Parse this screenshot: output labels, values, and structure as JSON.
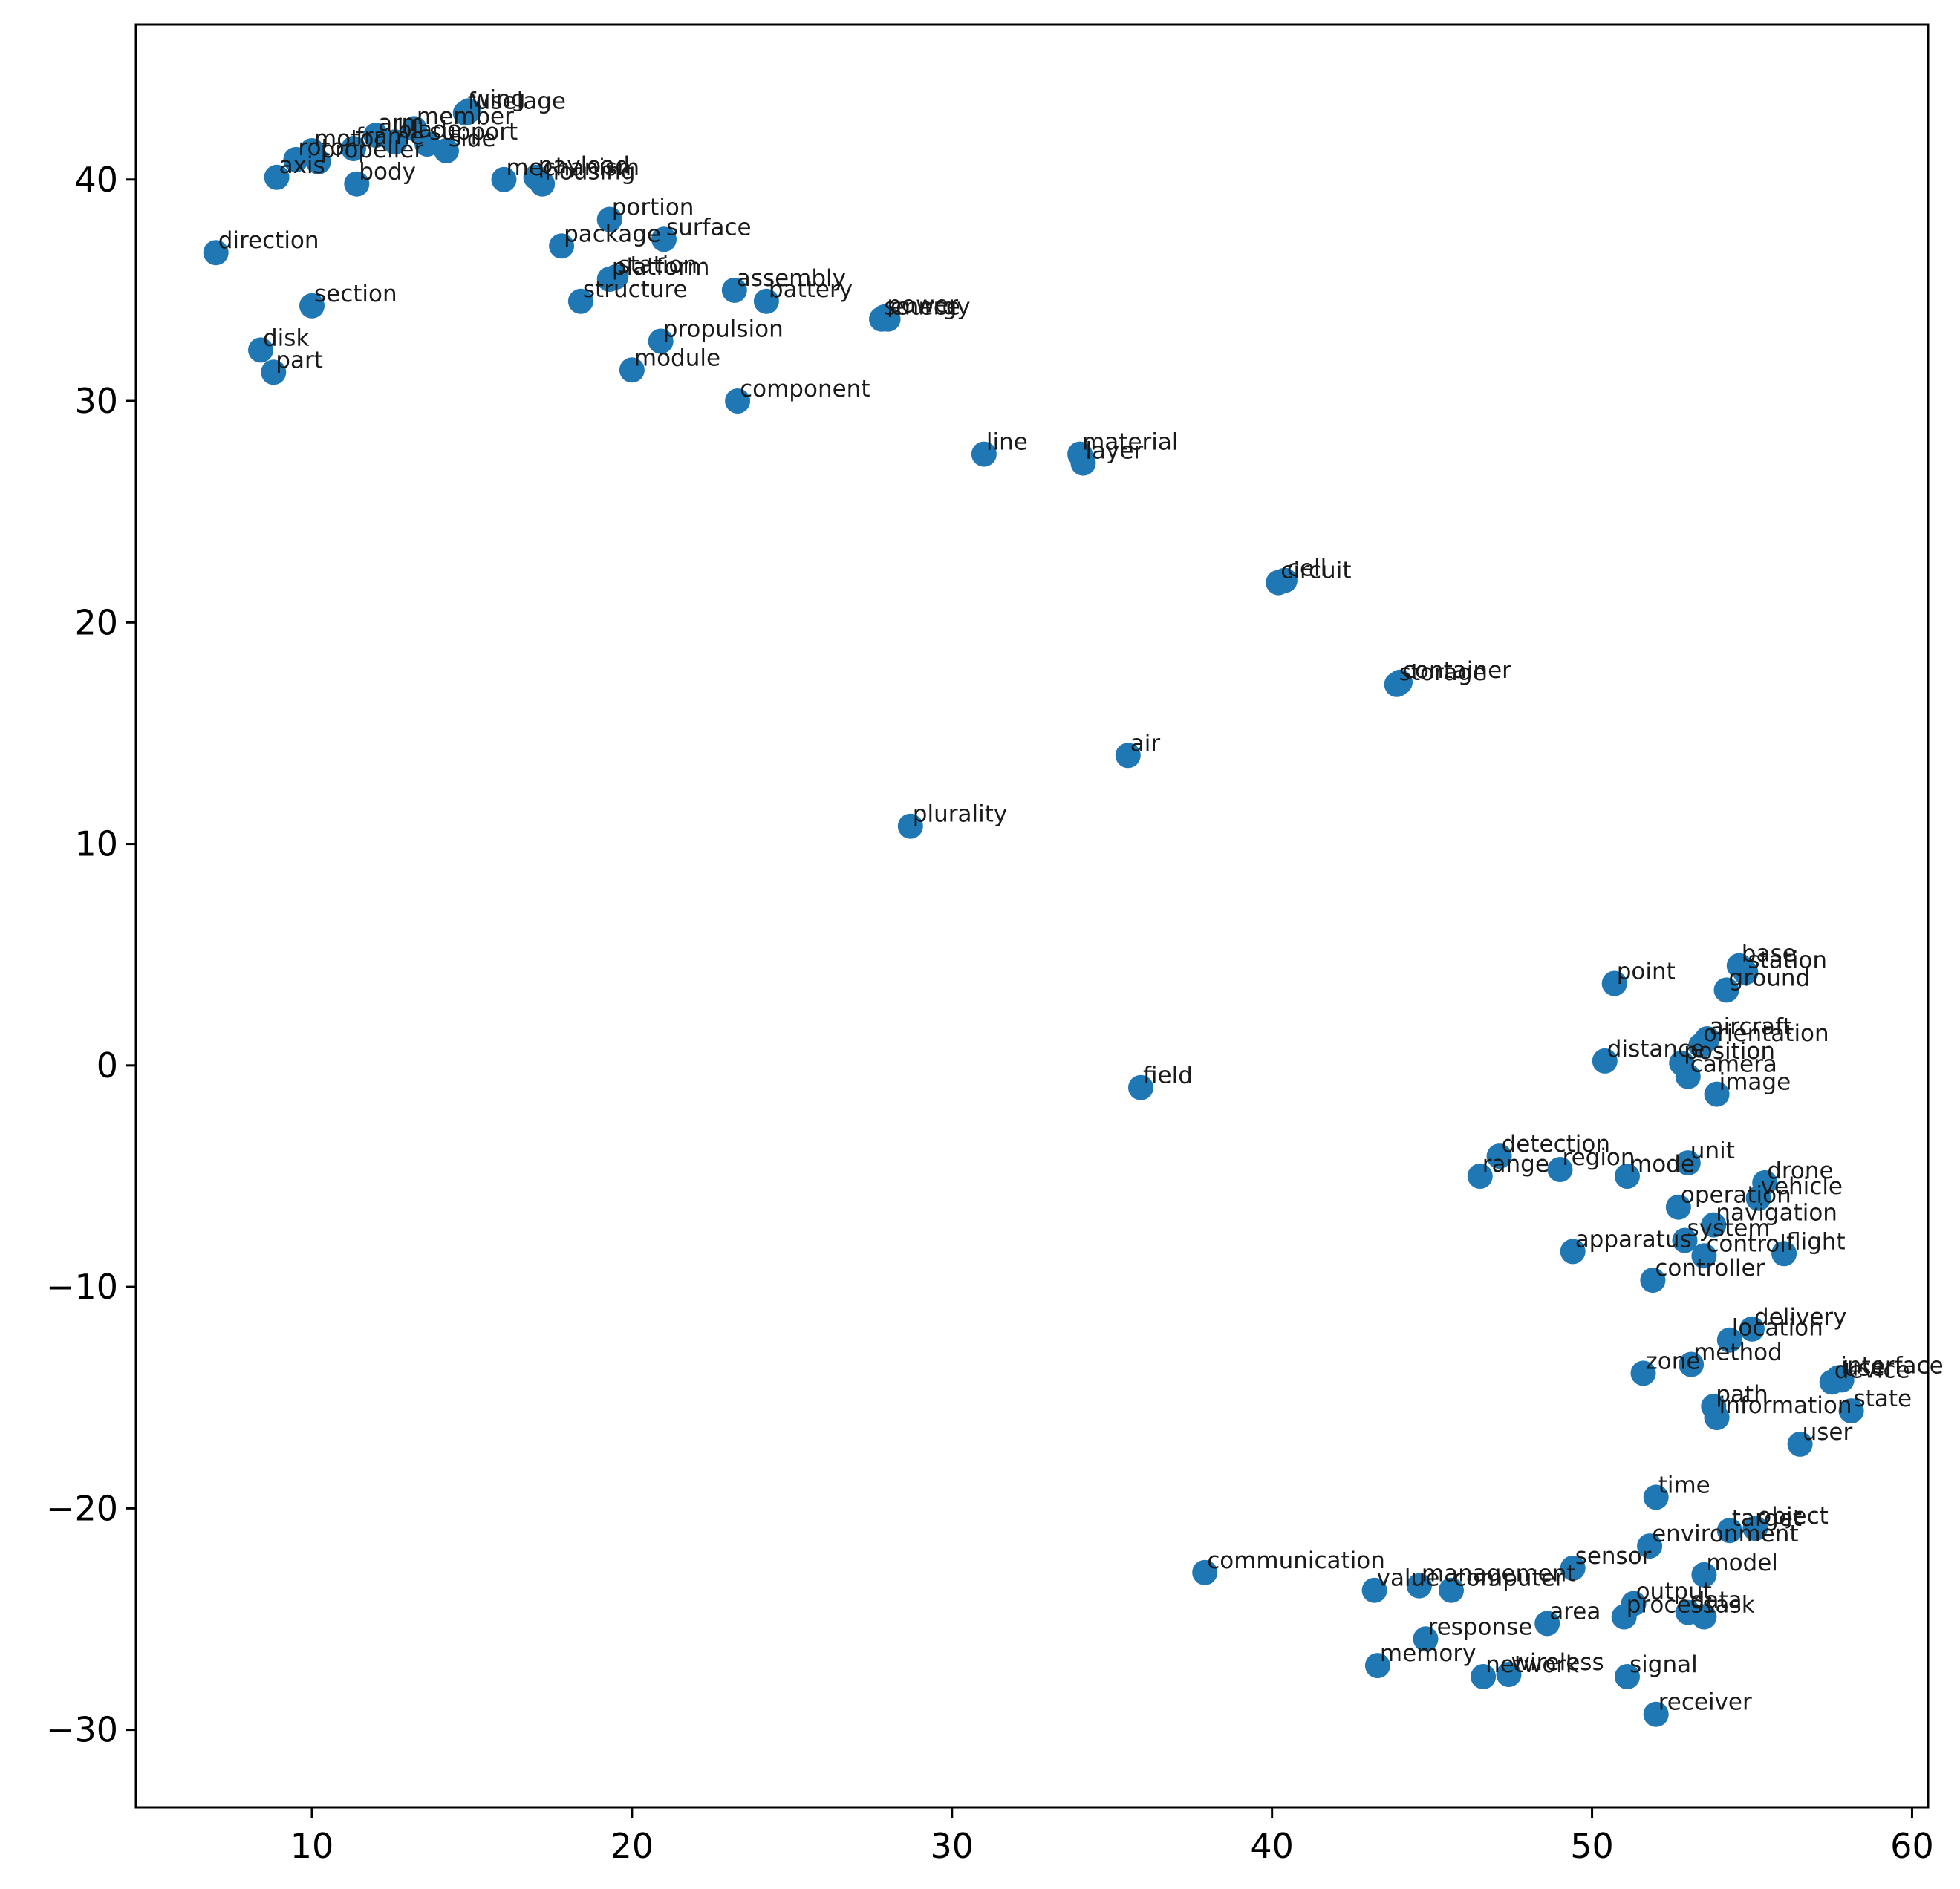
{
  "chart_data": {
    "type": "scatter",
    "title": "",
    "xlabel": "",
    "ylabel": "",
    "xlim": [
      4.5,
      60.5
    ],
    "ylim": [
      -33.5,
      47
    ],
    "xticks": [
      10,
      20,
      30,
      40,
      50,
      60
    ],
    "yticks": [
      -30,
      -20,
      -10,
      0,
      10,
      20,
      30,
      40
    ],
    "xtick_labels": [
      "10",
      "20",
      "30",
      "40",
      "50",
      "60"
    ],
    "ytick_labels": [
      "−30",
      "−20",
      "−10",
      "0",
      "10",
      "20",
      "30",
      "40"
    ],
    "grid": false,
    "legend": "none",
    "marker_color": "#1f77b4",
    "points": [
      {
        "label": "fuselage",
        "x": 14.8,
        "y": 43.0
      },
      {
        "label": "wing",
        "x": 14.9,
        "y": 43.1
      },
      {
        "label": "member",
        "x": 13.2,
        "y": 42.3
      },
      {
        "label": "support",
        "x": 13.6,
        "y": 41.6
      },
      {
        "label": "arm",
        "x": 12.0,
        "y": 42.0
      },
      {
        "label": "blade",
        "x": 12.6,
        "y": 41.7
      },
      {
        "label": "side",
        "x": 14.2,
        "y": 41.3
      },
      {
        "label": "motor",
        "x": 10.0,
        "y": 41.3
      },
      {
        "label": "frame",
        "x": 11.3,
        "y": 41.4
      },
      {
        "label": "rotor",
        "x": 9.5,
        "y": 40.9
      },
      {
        "label": "propeller",
        "x": 10.2,
        "y": 40.8
      },
      {
        "label": "axis",
        "x": 8.9,
        "y": 40.1
      },
      {
        "label": "body",
        "x": 11.4,
        "y": 39.8
      },
      {
        "label": "mechanism",
        "x": 16.0,
        "y": 40.0
      },
      {
        "label": "payload",
        "x": 17.0,
        "y": 40.1
      },
      {
        "label": "housing",
        "x": 17.2,
        "y": 39.8
      },
      {
        "label": "portion",
        "x": 19.3,
        "y": 38.2
      },
      {
        "label": "surface",
        "x": 21.0,
        "y": 37.3
      },
      {
        "label": "package",
        "x": 17.8,
        "y": 37.0
      },
      {
        "label": "direction",
        "x": 7.0,
        "y": 36.7
      },
      {
        "label": "platform",
        "x": 19.3,
        "y": 35.5
      },
      {
        "label": "station",
        "x": 19.5,
        "y": 35.6
      },
      {
        "label": "structure",
        "x": 18.4,
        "y": 34.5
      },
      {
        "label": "assembly",
        "x": 23.2,
        "y": 35.0
      },
      {
        "label": "battery",
        "x": 24.2,
        "y": 34.5
      },
      {
        "label": "section",
        "x": 10.0,
        "y": 34.3
      },
      {
        "label": "source",
        "x": 27.8,
        "y": 33.7
      },
      {
        "label": "power",
        "x": 27.9,
        "y": 33.8
      },
      {
        "label": "energy",
        "x": 28.0,
        "y": 33.7
      },
      {
        "label": "propulsion",
        "x": 20.9,
        "y": 32.7
      },
      {
        "label": "disk",
        "x": 8.4,
        "y": 32.3
      },
      {
        "label": "module",
        "x": 20.0,
        "y": 31.4
      },
      {
        "label": "part",
        "x": 8.8,
        "y": 31.3
      },
      {
        "label": "component",
        "x": 23.3,
        "y": 30.0
      },
      {
        "label": "line",
        "x": 31.0,
        "y": 27.6
      },
      {
        "label": "material",
        "x": 34.0,
        "y": 27.6
      },
      {
        "label": "layer",
        "x": 34.1,
        "y": 27.2
      },
      {
        "label": "circuit",
        "x": 40.2,
        "y": 21.8
      },
      {
        "label": "cell",
        "x": 40.4,
        "y": 21.9
      },
      {
        "label": "container",
        "x": 44.0,
        "y": 17.3
      },
      {
        "label": "storage",
        "x": 43.9,
        "y": 17.2
      },
      {
        "label": "air",
        "x": 35.5,
        "y": 14.0
      },
      {
        "label": "plurality",
        "x": 28.7,
        "y": 10.8
      },
      {
        "label": "point",
        "x": 50.7,
        "y": 3.7
      },
      {
        "label": "base",
        "x": 54.6,
        "y": 4.5
      },
      {
        "label": "station",
        "x": 54.8,
        "y": 4.2
      },
      {
        "label": "ground",
        "x": 54.2,
        "y": 3.4
      },
      {
        "label": "aircraft",
        "x": 53.6,
        "y": 1.2
      },
      {
        "label": "orientation",
        "x": 53.4,
        "y": 0.9
      },
      {
        "label": "distance",
        "x": 50.4,
        "y": 0.2
      },
      {
        "label": "position",
        "x": 52.8,
        "y": 0.1
      },
      {
        "label": "camera",
        "x": 53.0,
        "y": -0.5
      },
      {
        "label": "image",
        "x": 53.9,
        "y": -1.3
      },
      {
        "label": "field",
        "x": 35.9,
        "y": -1.0
      },
      {
        "label": "detection",
        "x": 47.1,
        "y": -4.1
      },
      {
        "label": "range",
        "x": 46.5,
        "y": -5.0
      },
      {
        "label": "region",
        "x": 49.0,
        "y": -4.7
      },
      {
        "label": "mode",
        "x": 51.1,
        "y": -5.0
      },
      {
        "label": "unit",
        "x": 53.0,
        "y": -4.4
      },
      {
        "label": "drone",
        "x": 55.4,
        "y": -5.3
      },
      {
        "label": "operation",
        "x": 52.7,
        "y": -6.4
      },
      {
        "label": "vehicle",
        "x": 55.2,
        "y": -6.0
      },
      {
        "label": "navigation",
        "x": 53.8,
        "y": -7.2
      },
      {
        "label": "system",
        "x": 52.9,
        "y": -7.9
      },
      {
        "label": "control",
        "x": 53.5,
        "y": -8.6
      },
      {
        "label": "flight",
        "x": 56.0,
        "y": -8.5
      },
      {
        "label": "apparatus",
        "x": 49.4,
        "y": -8.4
      },
      {
        "label": "controller",
        "x": 51.9,
        "y": -9.7
      },
      {
        "label": "delivery",
        "x": 55.0,
        "y": -11.9
      },
      {
        "label": "location",
        "x": 54.3,
        "y": -12.4
      },
      {
        "label": "zone",
        "x": 51.6,
        "y": -13.9
      },
      {
        "label": "method",
        "x": 53.1,
        "y": -13.5
      },
      {
        "label": "interface",
        "x": 57.7,
        "y": -14.1
      },
      {
        "label": "user",
        "x": 57.8,
        "y": -14.2
      },
      {
        "label": "device",
        "x": 57.5,
        "y": -14.3
      },
      {
        "label": "path",
        "x": 53.8,
        "y": -15.4
      },
      {
        "label": "information",
        "x": 53.9,
        "y": -15.9
      },
      {
        "label": "state",
        "x": 58.1,
        "y": -15.6
      },
      {
        "label": "user",
        "x": 56.5,
        "y": -17.1
      },
      {
        "label": "time",
        "x": 52.0,
        "y": -19.5
      },
      {
        "label": "target",
        "x": 54.3,
        "y": -21.0
      },
      {
        "label": "object",
        "x": 55.1,
        "y": -20.9
      },
      {
        "label": "environment",
        "x": 51.8,
        "y": -21.7
      },
      {
        "label": "communication",
        "x": 37.9,
        "y": -22.9
      },
      {
        "label": "sensor",
        "x": 49.4,
        "y": -22.7
      },
      {
        "label": "model",
        "x": 53.5,
        "y": -23.0
      },
      {
        "label": "value",
        "x": 43.2,
        "y": -23.7
      },
      {
        "label": "management",
        "x": 44.6,
        "y": -23.5
      },
      {
        "label": "computer",
        "x": 45.6,
        "y": -23.7
      },
      {
        "label": "output",
        "x": 51.3,
        "y": -24.3
      },
      {
        "label": "process",
        "x": 51.0,
        "y": -24.9
      },
      {
        "label": "data",
        "x": 53.0,
        "y": -24.7
      },
      {
        "label": "task",
        "x": 53.5,
        "y": -24.9
      },
      {
        "label": "area",
        "x": 48.6,
        "y": -25.2
      },
      {
        "label": "response",
        "x": 44.8,
        "y": -25.9
      },
      {
        "label": "memory",
        "x": 43.3,
        "y": -27.1
      },
      {
        "label": "network",
        "x": 46.6,
        "y": -27.6
      },
      {
        "label": "wireless",
        "x": 47.4,
        "y": -27.5
      },
      {
        "label": "signal",
        "x": 51.1,
        "y": -27.6
      },
      {
        "label": "receiver",
        "x": 52.0,
        "y": -29.3
      }
    ]
  }
}
